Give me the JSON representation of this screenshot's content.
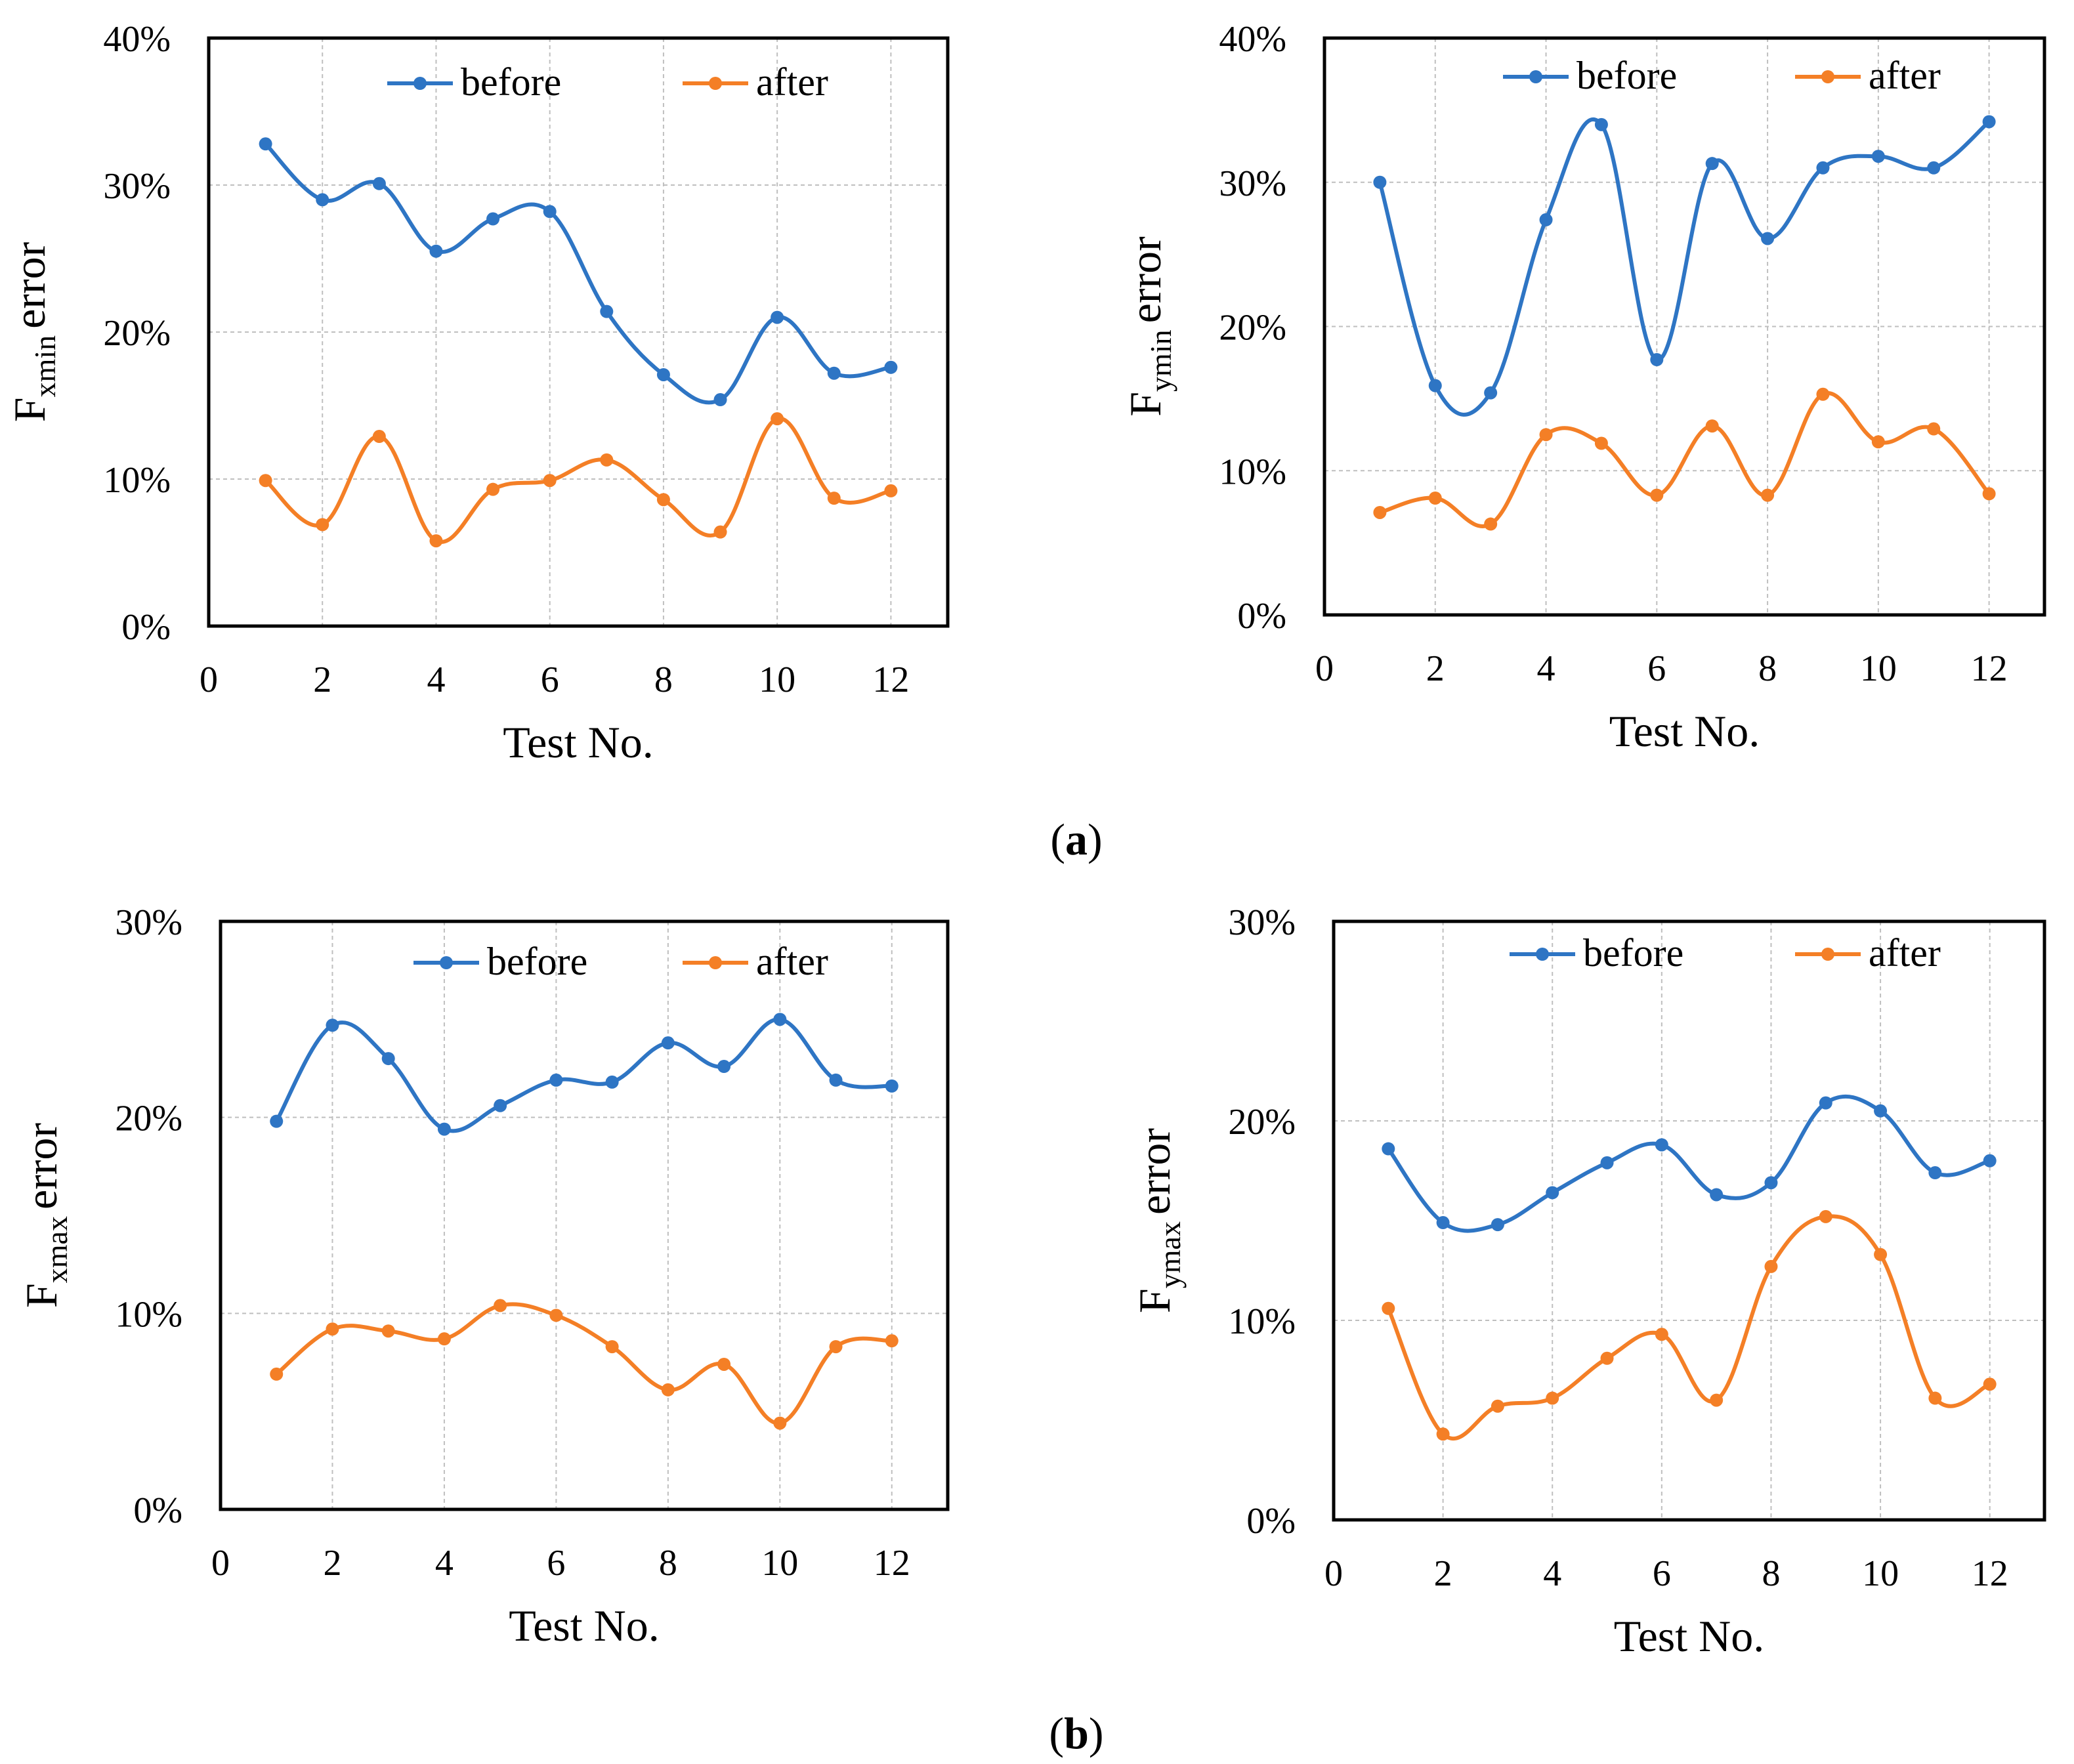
{
  "panel_labels": {
    "a": "a",
    "b": "b"
  },
  "colors": {
    "before": "#2E75C4",
    "after": "#F47F26"
  },
  "chart_data": [
    {
      "type": "line",
      "id": "fxmin",
      "title": "",
      "ylabel_main": "F",
      "ylabel_sub": "xmin",
      "ylabel_rest": "error",
      "xlabel": "Test No.",
      "xlim": [
        0,
        13
      ],
      "ylim": [
        0,
        40
      ],
      "xticks": [
        "0",
        "2",
        "4",
        "6",
        "8",
        "10",
        "12"
      ],
      "yticks": [
        "0%",
        "10%",
        "20%",
        "30%",
        "40%"
      ],
      "legend_position": "top-right",
      "x": [
        1,
        2,
        3,
        4,
        5,
        6,
        7,
        8,
        9,
        10,
        11,
        12
      ],
      "series": [
        {
          "name": "before",
          "values": [
            32.8,
            29.0,
            30.1,
            25.5,
            27.7,
            28.2,
            21.4,
            17.1,
            15.4,
            21.0,
            17.2,
            17.6
          ]
        },
        {
          "name": "after",
          "values": [
            9.9,
            6.9,
            12.9,
            5.8,
            9.3,
            9.9,
            11.3,
            8.6,
            6.4,
            14.1,
            8.7,
            9.2
          ]
        }
      ]
    },
    {
      "type": "line",
      "id": "fymin",
      "title": "",
      "ylabel_main": "F",
      "ylabel_sub": "ymin",
      "ylabel_rest": "error",
      "xlabel": "Test No.",
      "xlim": [
        0,
        13
      ],
      "ylim": [
        0,
        40
      ],
      "xticks": [
        "0",
        "2",
        "4",
        "6",
        "8",
        "10",
        "12"
      ],
      "yticks": [
        "0%",
        "10%",
        "20%",
        "30%",
        "40%"
      ],
      "legend_position": "top-right",
      "x": [
        1,
        2,
        3,
        4,
        5,
        6,
        7,
        8,
        9,
        10,
        11,
        12
      ],
      "series": [
        {
          "name": "before",
          "values": [
            30.0,
            15.9,
            15.4,
            27.4,
            34.0,
            17.7,
            31.3,
            26.1,
            31.0,
            31.8,
            31.0,
            34.2
          ]
        },
        {
          "name": "after",
          "values": [
            7.1,
            8.1,
            6.3,
            12.5,
            11.9,
            8.3,
            13.1,
            8.3,
            15.3,
            12.0,
            12.9,
            8.4
          ]
        }
      ]
    },
    {
      "type": "line",
      "id": "fxmax",
      "title": "",
      "ylabel_main": "F",
      "ylabel_sub": "xmax",
      "ylabel_rest": "error",
      "xlabel": "Test No.",
      "xlim": [
        0,
        13
      ],
      "ylim": [
        0,
        30
      ],
      "xticks": [
        "0",
        "2",
        "4",
        "6",
        "8",
        "10",
        "12"
      ],
      "yticks": [
        "0%",
        "10%",
        "20%",
        "30%"
      ],
      "legend_position": "top-right",
      "x": [
        1,
        2,
        3,
        4,
        5,
        6,
        7,
        8,
        9,
        10,
        11,
        12
      ],
      "series": [
        {
          "name": "before",
          "values": [
            19.8,
            24.7,
            23.0,
            19.4,
            20.6,
            21.9,
            21.8,
            23.8,
            22.6,
            25.0,
            21.9,
            21.6
          ]
        },
        {
          "name": "after",
          "values": [
            6.9,
            9.2,
            9.1,
            8.7,
            10.4,
            9.9,
            8.3,
            6.1,
            7.4,
            4.4,
            8.3,
            8.6
          ]
        }
      ]
    },
    {
      "type": "line",
      "id": "fymax",
      "title": "",
      "ylabel_main": "F",
      "ylabel_sub": "ymax",
      "ylabel_rest": "error",
      "xlabel": "Test No.",
      "xlim": [
        0,
        13
      ],
      "ylim": [
        0,
        30
      ],
      "xticks": [
        "0",
        "2",
        "4",
        "6",
        "8",
        "10",
        "12"
      ],
      "yticks": [
        "0%",
        "10%",
        "20%",
        "30%"
      ],
      "legend_position": "top-right",
      "x": [
        1,
        2,
        3,
        4,
        5,
        6,
        7,
        8,
        9,
        10,
        11,
        12
      ],
      "series": [
        {
          "name": "before",
          "values": [
            18.6,
            14.9,
            14.8,
            16.4,
            17.9,
            18.8,
            16.3,
            16.9,
            20.9,
            20.5,
            17.4,
            18.0
          ]
        },
        {
          "name": "after",
          "values": [
            10.6,
            4.3,
            5.7,
            6.1,
            8.1,
            9.3,
            6.0,
            12.7,
            15.2,
            13.3,
            6.1,
            6.8
          ]
        }
      ]
    }
  ]
}
